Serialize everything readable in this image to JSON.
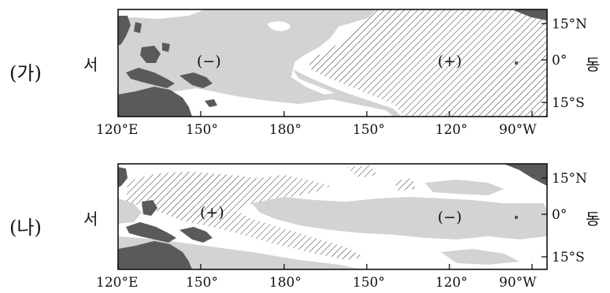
{
  "panels": [
    {
      "label": "(가)",
      "left_side": "서",
      "right_side": "동",
      "sign_left": "(−)",
      "sign_right": "(+)"
    },
    {
      "label": "(나)",
      "left_side": "서",
      "right_side": "동",
      "sign_left": "(+)",
      "sign_right": "(−)"
    }
  ],
  "lon_ticks": [
    "120°E",
    "150°",
    "180°",
    "150°",
    "120°",
    "90°W"
  ],
  "lat_ticks": [
    "15°N",
    "0°",
    "15°S"
  ],
  "colors": {
    "land": "#5a5a5a",
    "negative_anomaly": "#d3d3d3",
    "positive_anomaly_hatch": "#333333",
    "ocean": "#ffffff"
  }
}
